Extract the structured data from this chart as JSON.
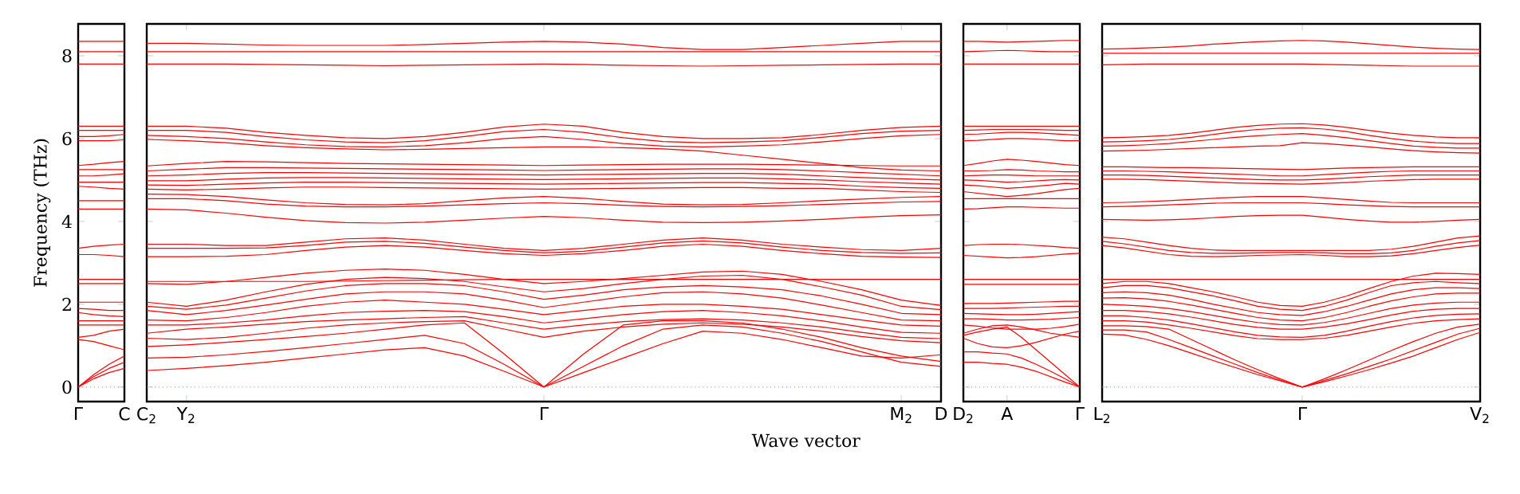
{
  "chart_data": [
    {
      "type": "line",
      "ylabel": "Frequency (THz)",
      "categories": [
        "Γ",
        null,
        null,
        "C"
      ],
      "ylim": [
        -0.35,
        8.77
      ],
      "yticks": [
        0,
        2,
        4,
        6,
        8
      ],
      "ref_lines": [
        {
          "axis": "y",
          "value": 0,
          "color": "#7f7fff",
          "line_style": "dotted"
        }
      ],
      "series": [
        {
          "color": "#ff0000",
          "values": [
            8.35,
            8.35,
            8.35,
            8.35
          ]
        },
        {
          "color": "#ff0000",
          "values": [
            8.1,
            8.1,
            8.1,
            8.1
          ]
        },
        {
          "color": "#ff0000",
          "values": [
            7.8,
            7.8,
            7.8,
            7.8
          ]
        },
        {
          "color": "#ff0000",
          "values": [
            6.3,
            6.3,
            6.3,
            6.3
          ]
        },
        {
          "color": "#ff0000",
          "values": [
            6.2,
            6.2,
            6.2,
            6.2
          ]
        },
        {
          "color": "#ff0000",
          "values": [
            6.05,
            6.05,
            6.07,
            6.1
          ]
        },
        {
          "color": "#ff0000",
          "values": [
            5.95,
            5.95,
            5.95,
            5.97
          ]
        },
        {
          "color": "#ff0000",
          "values": [
            5.35,
            5.38,
            5.42,
            5.45
          ]
        },
        {
          "color": "#ff0000",
          "values": [
            5.25,
            5.25,
            5.25,
            5.25
          ]
        },
        {
          "color": "#ff0000",
          "values": [
            5.1,
            5.1,
            5.12,
            5.15
          ]
        },
        {
          "color": "#ff0000",
          "values": [
            4.95,
            4.95,
            4.95,
            4.95
          ]
        },
        {
          "color": "#ff0000",
          "values": [
            4.85,
            4.83,
            4.8,
            4.78
          ]
        },
        {
          "color": "#ff0000",
          "values": [
            4.5,
            4.5,
            4.5,
            4.5
          ]
        },
        {
          "color": "#ff0000",
          "values": [
            4.3,
            4.3,
            4.3,
            4.3
          ]
        },
        {
          "color": "#ff0000",
          "values": [
            3.35,
            3.4,
            3.43,
            3.45
          ]
        },
        {
          "color": "#ff0000",
          "values": [
            3.2,
            3.2,
            3.18,
            3.15
          ]
        },
        {
          "color": "#ff0000",
          "values": [
            2.6,
            2.6,
            2.6,
            2.6
          ]
        },
        {
          "color": "#ff0000",
          "values": [
            2.5,
            2.5,
            2.5,
            2.5
          ]
        },
        {
          "color": "#ff0000",
          "values": [
            2.05,
            2.05,
            2.05,
            2.05
          ]
        },
        {
          "color": "#ff0000",
          "values": [
            1.9,
            1.88,
            1.85,
            1.85
          ]
        },
        {
          "color": "#ff0000",
          "values": [
            1.8,
            1.75,
            1.72,
            1.7
          ]
        },
        {
          "color": "#ff0000",
          "values": [
            1.6,
            1.6,
            1.6,
            1.6
          ]
        },
        {
          "color": "#ff0000",
          "values": [
            1.5,
            1.5,
            1.5,
            1.5
          ]
        },
        {
          "color": "#ff0000",
          "values": [
            1.2,
            1.25,
            1.35,
            1.4
          ]
        },
        {
          "color": "#ff0000",
          "values": [
            1.15,
            1.1,
            1.0,
            0.9
          ]
        },
        {
          "color": "#ff0000",
          "values": [
            0,
            0.3,
            0.55,
            0.75
          ]
        },
        {
          "color": "#ff0000",
          "values": [
            0,
            0.25,
            0.45,
            0.6
          ]
        },
        {
          "color": "#ff0000",
          "values": [
            0,
            0.2,
            0.35,
            0.45
          ]
        }
      ]
    },
    {
      "type": "line",
      "xlabel": "Wave vector",
      "tick_labels": "x",
      "categories": [
        "C$_{2}$",
        "Y$_{2}$",
        null,
        null,
        null,
        null,
        null,
        null,
        null,
        null,
        "Γ",
        null,
        null,
        null,
        null,
        null,
        null,
        null,
        null,
        "M$_{2}$",
        "D"
      ],
      "ylim": [
        -0.35,
        8.77
      ],
      "yticks": [
        0,
        2,
        4,
        6,
        8
      ],
      "ref_lines": [
        {
          "axis": "y",
          "value": 0,
          "color": "#7f7fff",
          "line_style": "dotted"
        }
      ],
      "series": [
        {
          "color": "#ff0000",
          "values": [
            8.3,
            8.3,
            8.28,
            8.26,
            8.25,
            8.25,
            8.25,
            8.27,
            8.3,
            8.33,
            8.35,
            8.33,
            8.28,
            8.2,
            8.15,
            8.15,
            8.2,
            8.25,
            8.3,
            8.35,
            8.35
          ]
        },
        {
          "color": "#ff0000",
          "values": [
            8.1,
            8.1,
            8.1,
            8.1,
            8.1,
            8.1,
            8.1,
            8.1,
            8.1,
            8.1,
            8.1,
            8.1,
            8.1,
            8.1,
            8.1,
            8.1,
            8.1,
            8.1,
            8.1,
            8.1,
            8.1
          ]
        },
        {
          "color": "#ff0000",
          "values": [
            7.8,
            7.8,
            7.8,
            7.79,
            7.78,
            7.77,
            7.76,
            7.77,
            7.78,
            7.79,
            7.8,
            7.79,
            7.77,
            7.76,
            7.75,
            7.76,
            7.77,
            7.78,
            7.79,
            7.8,
            7.8
          ]
        },
        {
          "color": "#ff0000",
          "values": [
            6.3,
            6.3,
            6.25,
            6.15,
            6.08,
            6.02,
            6.0,
            6.05,
            6.15,
            6.28,
            6.35,
            6.3,
            6.15,
            6.05,
            6.0,
            6.0,
            6.02,
            6.1,
            6.2,
            6.27,
            6.3
          ]
        },
        {
          "color": "#ff0000",
          "values": [
            6.2,
            6.2,
            6.15,
            6.05,
            5.97,
            5.92,
            5.9,
            5.95,
            6.05,
            6.17,
            6.22,
            6.15,
            6.02,
            5.93,
            5.9,
            5.92,
            5.95,
            6.03,
            6.12,
            6.18,
            6.2
          ]
        },
        {
          "color": "#ff0000",
          "values": [
            6.08,
            6.05,
            6.0,
            5.92,
            5.85,
            5.81,
            5.8,
            5.83,
            5.9,
            6.0,
            6.05,
            5.98,
            5.88,
            5.82,
            5.8,
            5.82,
            5.85,
            5.92,
            6.0,
            6.07,
            6.1
          ]
        },
        {
          "color": "#ff0000",
          "values": [
            5.98,
            5.95,
            5.9,
            5.83,
            5.78,
            5.75,
            5.73,
            5.74,
            5.76,
            5.78,
            5.8,
            5.8,
            5.78,
            5.75,
            5.7,
            5.6,
            5.5,
            5.4,
            5.3,
            5.24,
            5.22
          ]
        },
        {
          "color": "#ff0000",
          "values": [
            5.34,
            5.4,
            5.45,
            5.44,
            5.42,
            5.4,
            5.39,
            5.38,
            5.37,
            5.36,
            5.35,
            5.36,
            5.37,
            5.38,
            5.38,
            5.38,
            5.37,
            5.36,
            5.35,
            5.34,
            5.34
          ]
        },
        {
          "color": "#ff0000",
          "values": [
            5.22,
            5.26,
            5.3,
            5.3,
            5.29,
            5.28,
            5.27,
            5.26,
            5.25,
            5.24,
            5.23,
            5.24,
            5.25,
            5.26,
            5.27,
            5.27,
            5.25,
            5.22,
            5.18,
            5.14,
            5.1
          ]
        },
        {
          "color": "#ff0000",
          "values": [
            5.1,
            5.12,
            5.16,
            5.18,
            5.18,
            5.17,
            5.16,
            5.15,
            5.14,
            5.13,
            5.12,
            5.13,
            5.14,
            5.15,
            5.16,
            5.16,
            5.14,
            5.1,
            5.06,
            5.03,
            5.0
          ]
        },
        {
          "color": "#ff0000",
          "values": [
            4.98,
            4.98,
            5.02,
            5.05,
            5.06,
            5.06,
            5.05,
            5.04,
            5.03,
            5.02,
            5.01,
            5.02,
            5.03,
            5.04,
            5.05,
            5.05,
            5.03,
            5.0,
            4.96,
            4.93,
            4.9
          ]
        },
        {
          "color": "#ff0000",
          "values": [
            4.88,
            4.87,
            4.9,
            4.93,
            4.95,
            4.95,
            4.94,
            4.93,
            4.92,
            4.91,
            4.9,
            4.91,
            4.92,
            4.93,
            4.94,
            4.94,
            4.92,
            4.9,
            4.85,
            4.82,
            4.8
          ]
        },
        {
          "color": "#ff0000",
          "values": [
            4.78,
            4.76,
            4.78,
            4.81,
            4.83,
            4.83,
            4.82,
            4.81,
            4.8,
            4.79,
            4.78,
            4.79,
            4.8,
            4.81,
            4.82,
            4.82,
            4.8,
            4.8,
            4.76,
            4.72,
            4.7
          ]
        },
        {
          "color": "#ff0000",
          "values": [
            4.66,
            4.65,
            4.6,
            4.52,
            4.45,
            4.41,
            4.4,
            4.43,
            4.5,
            4.57,
            4.6,
            4.56,
            4.48,
            4.42,
            4.4,
            4.41,
            4.45,
            4.5,
            4.54,
            4.58,
            4.6
          ]
        },
        {
          "color": "#ff0000",
          "values": [
            4.55,
            4.55,
            4.5,
            4.42,
            4.37,
            4.35,
            4.35,
            4.37,
            4.4,
            4.43,
            4.45,
            4.43,
            4.39,
            4.36,
            4.35,
            4.36,
            4.38,
            4.41,
            4.44,
            4.47,
            4.48
          ]
        },
        {
          "color": "#ff0000",
          "values": [
            4.3,
            4.28,
            4.2,
            4.1,
            4.02,
            3.97,
            3.96,
            3.98,
            4.03,
            4.08,
            4.12,
            4.09,
            4.03,
            3.98,
            3.97,
            3.98,
            4.01,
            4.05,
            4.1,
            4.14,
            4.16
          ]
        },
        {
          "color": "#ff0000",
          "values": [
            3.45,
            3.45,
            3.42,
            3.42,
            3.5,
            3.58,
            3.6,
            3.55,
            3.45,
            3.35,
            3.3,
            3.35,
            3.45,
            3.55,
            3.6,
            3.55,
            3.45,
            3.38,
            3.32,
            3.3,
            3.35
          ]
        },
        {
          "color": "#ff0000",
          "values": [
            3.35,
            3.35,
            3.35,
            3.36,
            3.42,
            3.5,
            3.52,
            3.47,
            3.38,
            3.3,
            3.24,
            3.28,
            3.38,
            3.48,
            3.53,
            3.48,
            3.38,
            3.3,
            3.25,
            3.23,
            3.24
          ]
        },
        {
          "color": "#ff0000",
          "values": [
            3.15,
            3.15,
            3.16,
            3.2,
            3.3,
            3.38,
            3.42,
            3.38,
            3.3,
            3.22,
            3.18,
            3.22,
            3.3,
            3.4,
            3.45,
            3.4,
            3.3,
            3.22,
            3.16,
            3.14,
            3.13
          ]
        },
        {
          "color": "#ff0000",
          "values": [
            2.55,
            2.55,
            2.55,
            2.55,
            2.55,
            2.56,
            2.57,
            2.58,
            2.59,
            2.6,
            2.6,
            2.6,
            2.6,
            2.6,
            2.6,
            2.6,
            2.6,
            2.6,
            2.6,
            2.6,
            2.6
          ]
        },
        {
          "color": "#ff0000",
          "values": [
            2.5,
            2.48,
            2.55,
            2.65,
            2.75,
            2.82,
            2.85,
            2.82,
            2.72,
            2.6,
            2.5,
            2.55,
            2.62,
            2.7,
            2.78,
            2.8,
            2.72,
            2.55,
            2.35,
            2.1,
            1.97
          ]
        },
        {
          "color": "#ff0000",
          "values": [
            2.05,
            1.95,
            2.1,
            2.3,
            2.48,
            2.6,
            2.65,
            2.62,
            2.55,
            2.42,
            2.3,
            2.38,
            2.5,
            2.6,
            2.68,
            2.7,
            2.6,
            2.42,
            2.22,
            1.95,
            1.87
          ]
        },
        {
          "color": "#ff0000",
          "values": [
            1.95,
            1.88,
            1.98,
            2.15,
            2.32,
            2.45,
            2.5,
            2.5,
            2.45,
            2.3,
            2.12,
            2.22,
            2.35,
            2.42,
            2.45,
            2.42,
            2.35,
            2.2,
            2.0,
            1.78,
            1.75
          ]
        },
        {
          "color": "#ff0000",
          "values": [
            1.85,
            1.75,
            1.85,
            1.98,
            2.12,
            2.25,
            2.3,
            2.3,
            2.25,
            2.1,
            1.92,
            2.05,
            2.18,
            2.28,
            2.3,
            2.25,
            2.15,
            1.98,
            1.8,
            1.62,
            1.6
          ]
        },
        {
          "color": "#ff0000",
          "values": [
            1.62,
            1.6,
            1.68,
            1.8,
            1.95,
            2.05,
            2.1,
            2.05,
            2.0,
            1.88,
            1.75,
            1.85,
            1.95,
            2.0,
            2.0,
            1.95,
            1.88,
            1.75,
            1.62,
            1.5,
            1.47
          ]
        },
        {
          "color": "#ff0000",
          "values": [
            1.5,
            1.5,
            1.55,
            1.62,
            1.72,
            1.8,
            1.83,
            1.85,
            1.82,
            1.7,
            1.55,
            1.65,
            1.75,
            1.82,
            1.85,
            1.8,
            1.72,
            1.6,
            1.45,
            1.32,
            1.3
          ]
        },
        {
          "color": "#ff0000",
          "values": [
            1.3,
            1.4,
            1.45,
            1.52,
            1.58,
            1.62,
            1.65,
            1.68,
            1.7,
            1.55,
            1.4,
            1.5,
            1.58,
            1.63,
            1.65,
            1.62,
            1.55,
            1.45,
            1.32,
            1.2,
            1.17
          ]
        },
        {
          "color": "#ff0000",
          "values": [
            1.18,
            1.15,
            1.2,
            1.3,
            1.42,
            1.5,
            1.55,
            1.58,
            1.6,
            1.4,
            1.2,
            1.35,
            1.45,
            1.52,
            1.55,
            1.52,
            1.45,
            1.35,
            1.22,
            1.12,
            1.07
          ]
        },
        {
          "color": "#ff0000",
          "values": [
            0.98,
            1.02,
            1.08,
            1.15,
            1.22,
            1.3,
            1.4,
            1.5,
            1.55,
            0.8,
            0,
            0.8,
            1.5,
            1.6,
            1.6,
            1.55,
            1.4,
            1.2,
            0.95,
            0.75,
            0.62
          ]
        },
        {
          "color": "#ff0000",
          "values": [
            0.7,
            0.72,
            0.78,
            0.86,
            0.95,
            1.05,
            1.15,
            1.25,
            1.05,
            0.55,
            0,
            0.5,
            1.0,
            1.4,
            1.5,
            1.45,
            1.3,
            1.1,
            0.85,
            0.6,
            0.5
          ]
        },
        {
          "color": "#ff0000",
          "values": [
            0.4,
            0.45,
            0.52,
            0.6,
            0.7,
            0.8,
            0.9,
            0.95,
            0.75,
            0.38,
            0,
            0.35,
            0.7,
            1.05,
            1.35,
            1.3,
            1.15,
            0.95,
            0.75,
            0.7,
            0.78
          ]
        }
      ]
    },
    {
      "type": "line",
      "tick_labels": "x",
      "categories": [
        "D$_{2}$",
        null,
        null,
        "A",
        null,
        null,
        null,
        null,
        "Γ"
      ],
      "ylim": [
        -0.35,
        8.77
      ],
      "yticks": [
        0,
        2,
        4,
        6,
        8
      ],
      "ref_lines": [
        {
          "axis": "y",
          "value": 0,
          "color": "#7f7fff",
          "line_style": "dotted"
        }
      ],
      "series": [
        {
          "color": "#ff0000",
          "values": [
            8.35,
            8.35,
            8.34,
            8.33,
            8.34,
            8.35,
            8.36,
            8.37,
            8.37
          ]
        },
        {
          "color": "#ff0000",
          "values": [
            8.1,
            8.11,
            8.12,
            8.13,
            8.12,
            8.11,
            8.1,
            8.1,
            8.1
          ]
        },
        {
          "color": "#ff0000",
          "values": [
            7.8,
            7.8,
            7.8,
            7.8,
            7.8,
            7.8,
            7.8,
            7.8,
            7.8
          ]
        },
        {
          "color": "#ff0000",
          "values": [
            6.3,
            6.3,
            6.3,
            6.3,
            6.3,
            6.3,
            6.3,
            6.3,
            6.3
          ]
        },
        {
          "color": "#ff0000",
          "values": [
            6.2,
            6.21,
            6.22,
            6.22,
            6.22,
            6.22,
            6.21,
            6.2,
            6.2
          ]
        },
        {
          "color": "#ff0000",
          "values": [
            6.1,
            6.11,
            6.13,
            6.15,
            6.15,
            6.14,
            6.12,
            6.1,
            6.08
          ]
        },
        {
          "color": "#ff0000",
          "values": [
            5.95,
            5.96,
            5.98,
            6.0,
            6.0,
            5.99,
            5.97,
            5.95,
            5.95
          ]
        },
        {
          "color": "#ff0000",
          "values": [
            5.35,
            5.4,
            5.46,
            5.5,
            5.48,
            5.45,
            5.41,
            5.37,
            5.35
          ]
        },
        {
          "color": "#ff0000",
          "values": [
            5.22,
            5.22,
            5.23,
            5.25,
            5.24,
            5.22,
            5.21,
            5.2,
            5.2
          ]
        },
        {
          "color": "#ff0000",
          "values": [
            5.1,
            5.11,
            5.12,
            5.12,
            5.11,
            5.1,
            5.1,
            5.1,
            5.1
          ]
        },
        {
          "color": "#ff0000",
          "values": [
            5.0,
            4.99,
            4.97,
            4.95,
            4.96,
            4.98,
            5.0,
            5.01,
            5.0
          ]
        },
        {
          "color": "#ff0000",
          "values": [
            4.88,
            4.86,
            4.83,
            4.8,
            4.82,
            4.85,
            4.88,
            4.92,
            4.9
          ]
        },
        {
          "color": "#ff0000",
          "values": [
            4.72,
            4.68,
            4.64,
            4.6,
            4.63,
            4.67,
            4.72,
            4.77,
            4.8
          ]
        },
        {
          "color": "#ff0000",
          "values": [
            4.55,
            4.55,
            4.55,
            4.55,
            4.55,
            4.55,
            4.55,
            4.55,
            4.55
          ]
        },
        {
          "color": "#ff0000",
          "values": [
            4.3,
            4.31,
            4.33,
            4.35,
            4.35,
            4.34,
            4.33,
            4.32,
            4.32
          ]
        },
        {
          "color": "#ff0000",
          "values": [
            3.42,
            3.44,
            3.45,
            3.45,
            3.44,
            3.42,
            3.4,
            3.37,
            3.35
          ]
        },
        {
          "color": "#ff0000",
          "values": [
            3.18,
            3.16,
            3.14,
            3.12,
            3.13,
            3.15,
            3.18,
            3.21,
            3.23
          ]
        },
        {
          "color": "#ff0000",
          "values": [
            2.6,
            2.6,
            2.6,
            2.6,
            2.6,
            2.6,
            2.6,
            2.6,
            2.6
          ]
        },
        {
          "color": "#ff0000",
          "values": [
            2.48,
            2.48,
            2.48,
            2.48,
            2.48,
            2.48,
            2.48,
            2.48,
            2.48
          ]
        },
        {
          "color": "#ff0000",
          "values": [
            2.02,
            2.02,
            2.02,
            2.03,
            2.04,
            2.05,
            2.06,
            2.07,
            2.07
          ]
        },
        {
          "color": "#ff0000",
          "values": [
            1.9,
            1.9,
            1.9,
            1.91,
            1.92,
            1.93,
            1.94,
            1.95,
            1.95
          ]
        },
        {
          "color": "#ff0000",
          "values": [
            1.78,
            1.77,
            1.76,
            1.75,
            1.75,
            1.76,
            1.78,
            1.8,
            1.82
          ]
        },
        {
          "color": "#ff0000",
          "values": [
            1.65,
            1.65,
            1.64,
            1.62,
            1.62,
            1.63,
            1.64,
            1.66,
            1.68
          ]
        },
        {
          "color": "#ff0000",
          "values": [
            1.5,
            1.47,
            1.43,
            1.4,
            1.4,
            1.4,
            1.42,
            1.46,
            1.52
          ]
        },
        {
          "color": "#ff0000",
          "values": [
            1.3,
            1.4,
            1.48,
            1.5,
            1.45,
            1.38,
            1.3,
            1.25,
            1.2
          ]
        },
        {
          "color": "#ff0000",
          "values": [
            1.18,
            1.05,
            0.97,
            0.95,
            1.0,
            1.08,
            1.18,
            1.28,
            1.35
          ]
        },
        {
          "color": "#ff0000",
          "values": [
            1.25,
            1.33,
            1.4,
            1.45,
            1.2,
            0.9,
            0.6,
            0.3,
            0
          ]
        },
        {
          "color": "#ff0000",
          "values": [
            0.85,
            0.85,
            0.82,
            0.8,
            0.7,
            0.55,
            0.38,
            0.2,
            0
          ]
        },
        {
          "color": "#ff0000",
          "values": [
            0.6,
            0.6,
            0.57,
            0.55,
            0.48,
            0.38,
            0.25,
            0.12,
            0
          ]
        }
      ]
    },
    {
      "type": "line",
      "tick_labels": "x",
      "categories": [
        "L$_{2}$",
        null,
        null,
        null,
        null,
        null,
        null,
        null,
        null,
        "Γ",
        null,
        null,
        null,
        null,
        null,
        null,
        null,
        "V$_{2}$"
      ],
      "ylim": [
        -0.35,
        8.77
      ],
      "yticks": [
        0,
        2,
        4,
        6,
        8
      ],
      "ref_lines": [
        {
          "axis": "y",
          "value": 0,
          "color": "#7f7fff",
          "line_style": "dotted"
        }
      ],
      "series": [
        {
          "color": "#ff0000",
          "values": [
            8.16,
            8.17,
            8.19,
            8.21,
            8.24,
            8.28,
            8.31,
            8.34,
            8.36,
            8.37,
            8.36,
            8.33,
            8.29,
            8.25,
            8.21,
            8.18,
            8.16,
            8.15
          ]
        },
        {
          "color": "#ff0000",
          "values": [
            8.06,
            8.06,
            8.06,
            8.06,
            8.06,
            8.06,
            8.06,
            8.06,
            8.06,
            8.06,
            8.06,
            8.06,
            8.06,
            8.06,
            8.06,
            8.06,
            8.06,
            8.06
          ]
        },
        {
          "color": "#ff0000",
          "values": [
            7.78,
            7.79,
            7.8,
            7.8,
            7.8,
            7.8,
            7.8,
            7.8,
            7.8,
            7.8,
            7.79,
            7.78,
            7.77,
            7.76,
            7.75,
            7.75,
            7.75,
            7.75
          ]
        },
        {
          "color": "#ff0000",
          "values": [
            6.02,
            6.03,
            6.05,
            6.08,
            6.13,
            6.2,
            6.27,
            6.32,
            6.35,
            6.36,
            6.33,
            6.27,
            6.2,
            6.13,
            6.08,
            6.04,
            6.02,
            6.02
          ]
        },
        {
          "color": "#ff0000",
          "values": [
            5.92,
            5.93,
            5.95,
            5.98,
            6.03,
            6.1,
            6.17,
            6.22,
            6.25,
            6.26,
            6.23,
            6.17,
            6.08,
            6.0,
            5.94,
            5.9,
            5.88,
            5.88
          ]
        },
        {
          "color": "#ff0000",
          "values": [
            5.82,
            5.83,
            5.85,
            5.88,
            5.93,
            5.98,
            6.03,
            6.07,
            6.1,
            6.12,
            6.08,
            6.02,
            5.95,
            5.88,
            5.82,
            5.79,
            5.77,
            5.77
          ]
        },
        {
          "color": "#ff0000",
          "values": [
            5.7,
            5.71,
            5.72,
            5.74,
            5.76,
            5.78,
            5.8,
            5.82,
            5.83,
            5.9,
            5.88,
            5.84,
            5.8,
            5.75,
            5.71,
            5.68,
            5.66,
            5.65
          ]
        },
        {
          "color": "#ff0000",
          "values": [
            5.32,
            5.32,
            5.31,
            5.3,
            5.3,
            5.29,
            5.28,
            5.27,
            5.26,
            5.25,
            5.27,
            5.29,
            5.3,
            5.31,
            5.32,
            5.32,
            5.32,
            5.32
          ]
        },
        {
          "color": "#ff0000",
          "values": [
            5.22,
            5.22,
            5.21,
            5.2,
            5.18,
            5.16,
            5.14,
            5.12,
            5.1,
            5.1,
            5.13,
            5.16,
            5.19,
            5.21,
            5.22,
            5.22,
            5.22,
            5.22
          ]
        },
        {
          "color": "#ff0000",
          "values": [
            5.12,
            5.12,
            5.11,
            5.09,
            5.07,
            5.05,
            5.03,
            5.01,
            5.0,
            5.0,
            5.02,
            5.05,
            5.08,
            5.1,
            5.12,
            5.12,
            5.12,
            5.12
          ]
        },
        {
          "color": "#ff0000",
          "values": [
            5.02,
            5.02,
            5.01,
            4.99,
            4.97,
            4.95,
            4.93,
            4.92,
            4.91,
            4.9,
            4.92,
            4.94,
            4.97,
            4.99,
            5.01,
            5.02,
            5.02,
            5.02
          ]
        },
        {
          "color": "#ff0000",
          "values": [
            4.45,
            4.46,
            4.48,
            4.5,
            4.53,
            4.56,
            4.58,
            4.6,
            4.6,
            4.6,
            4.57,
            4.53,
            4.49,
            4.46,
            4.45,
            4.45,
            4.45,
            4.45
          ]
        },
        {
          "color": "#ff0000",
          "values": [
            4.35,
            4.36,
            4.38,
            4.4,
            4.42,
            4.44,
            4.45,
            4.45,
            4.45,
            4.45,
            4.43,
            4.4,
            4.38,
            4.36,
            4.35,
            4.35,
            4.35,
            4.35
          ]
        },
        {
          "color": "#ff0000",
          "values": [
            4.05,
            4.04,
            4.03,
            4.04,
            4.06,
            4.09,
            4.12,
            4.14,
            4.15,
            4.15,
            4.1,
            4.05,
            4.01,
            3.98,
            3.98,
            4.0,
            4.03,
            4.05
          ]
        },
        {
          "color": "#ff0000",
          "values": [
            3.62,
            3.58,
            3.5,
            3.42,
            3.35,
            3.31,
            3.3,
            3.3,
            3.3,
            3.3,
            3.3,
            3.3,
            3.3,
            3.33,
            3.4,
            3.5,
            3.6,
            3.65
          ]
        },
        {
          "color": "#ff0000",
          "values": [
            3.52,
            3.46,
            3.38,
            3.3,
            3.25,
            3.23,
            3.23,
            3.24,
            3.25,
            3.25,
            3.24,
            3.22,
            3.22,
            3.24,
            3.3,
            3.4,
            3.48,
            3.54
          ]
        },
        {
          "color": "#ff0000",
          "values": [
            3.42,
            3.36,
            3.28,
            3.2,
            3.16,
            3.15,
            3.16,
            3.18,
            3.19,
            3.2,
            3.18,
            3.15,
            3.15,
            3.17,
            3.22,
            3.3,
            3.37,
            3.43
          ]
        },
        {
          "color": "#ff0000",
          "values": [
            2.6,
            2.6,
            2.6,
            2.6,
            2.6,
            2.6,
            2.6,
            2.6,
            2.6,
            2.6,
            2.6,
            2.6,
            2.6,
            2.6,
            2.6,
            2.6,
            2.6,
            2.6
          ]
        },
        {
          "color": "#ff0000",
          "values": [
            2.5,
            2.55,
            2.55,
            2.5,
            2.4,
            2.3,
            2.18,
            2.05,
            1.97,
            1.95,
            2.05,
            2.2,
            2.38,
            2.55,
            2.68,
            2.75,
            2.74,
            2.72
          ]
        },
        {
          "color": "#ff0000",
          "values": [
            2.4,
            2.45,
            2.45,
            2.4,
            2.3,
            2.2,
            2.08,
            1.95,
            1.88,
            1.85,
            1.95,
            2.1,
            2.28,
            2.45,
            2.52,
            2.55,
            2.52,
            2.5
          ]
        },
        {
          "color": "#ff0000",
          "values": [
            2.28,
            2.3,
            2.28,
            2.22,
            2.12,
            2.0,
            1.9,
            1.8,
            1.75,
            1.73,
            1.82,
            1.95,
            2.1,
            2.25,
            2.35,
            2.4,
            2.4,
            2.38
          ]
        },
        {
          "color": "#ff0000",
          "values": [
            2.15,
            2.16,
            2.13,
            2.07,
            1.98,
            1.88,
            1.78,
            1.68,
            1.62,
            1.6,
            1.68,
            1.8,
            1.95,
            2.08,
            2.18,
            2.25,
            2.27,
            2.27
          ]
        },
        {
          "color": "#ff0000",
          "values": [
            2.0,
            1.98,
            1.95,
            1.9,
            1.82,
            1.73,
            1.64,
            1.56,
            1.51,
            1.5,
            1.56,
            1.66,
            1.78,
            1.9,
            1.98,
            2.03,
            2.05,
            2.05
          ]
        },
        {
          "color": "#ff0000",
          "values": [
            1.85,
            1.85,
            1.82,
            1.77,
            1.69,
            1.6,
            1.51,
            1.44,
            1.4,
            1.4,
            1.45,
            1.53,
            1.63,
            1.74,
            1.83,
            1.88,
            1.9,
            1.9
          ]
        },
        {
          "color": "#ff0000",
          "values": [
            1.72,
            1.72,
            1.68,
            1.62,
            1.53,
            1.43,
            1.33,
            1.25,
            1.21,
            1.2,
            1.25,
            1.35,
            1.47,
            1.58,
            1.67,
            1.73,
            1.76,
            1.77
          ]
        },
        {
          "color": "#ff0000",
          "values": [
            1.6,
            1.6,
            1.57,
            1.5,
            1.42,
            1.33,
            1.24,
            1.17,
            1.15,
            1.15,
            1.18,
            1.25,
            1.35,
            1.45,
            1.54,
            1.6,
            1.63,
            1.65
          ]
        },
        {
          "color": "#ff0000",
          "values": [
            1.48,
            1.48,
            1.46,
            1.4,
            1.15,
            0.9,
            0.65,
            0.42,
            0.2,
            0,
            0.2,
            0.42,
            0.65,
            0.88,
            1.1,
            1.3,
            1.45,
            1.52
          ]
        },
        {
          "color": "#ff0000",
          "values": [
            1.38,
            1.38,
            1.33,
            1.15,
            0.95,
            0.75,
            0.55,
            0.35,
            0.17,
            0,
            0.16,
            0.32,
            0.5,
            0.68,
            0.88,
            1.08,
            1.28,
            1.42
          ]
        },
        {
          "color": "#ff0000",
          "values": [
            1.28,
            1.26,
            1.15,
            1.0,
            0.82,
            0.64,
            0.47,
            0.3,
            0.15,
            0,
            0.13,
            0.27,
            0.42,
            0.58,
            0.75,
            0.95,
            1.15,
            1.32
          ]
        }
      ]
    }
  ]
}
